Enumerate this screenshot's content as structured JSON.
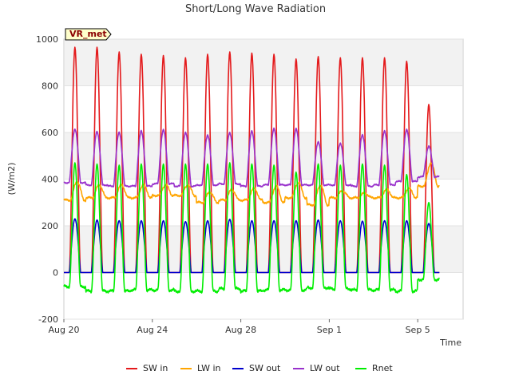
{
  "chart_data": {
    "type": "line",
    "title": "Short/Long Wave Radiation",
    "xlabel": "Time",
    "ylabel": "(W/m2)",
    "badge": "VR_met",
    "ylim": [
      -200,
      1000
    ],
    "yticks": [
      -200,
      0,
      200,
      400,
      600,
      800,
      1000
    ],
    "xlim_days": [
      0,
      18
    ],
    "xticks": [
      {
        "day": 0,
        "label": "Aug 20"
      },
      {
        "day": 4,
        "label": "Aug 24"
      },
      {
        "day": 8,
        "label": "Aug 28"
      },
      {
        "day": 12,
        "label": "Sep 1"
      },
      {
        "day": 16,
        "label": "Sep 5"
      }
    ],
    "days": [
      "Aug 20",
      "Aug 21",
      "Aug 22",
      "Aug 23",
      "Aug 24",
      "Aug 25",
      "Aug 26",
      "Aug 27",
      "Aug 28",
      "Aug 29",
      "Aug 30",
      "Aug 31",
      "Sep 1",
      "Sep 2",
      "Sep 3",
      "Sep 4",
      "Sep 5",
      "Sep 6"
    ],
    "daily_peaks": {
      "sw_in": [
        965,
        965,
        945,
        935,
        930,
        920,
        935,
        945,
        940,
        935,
        915,
        925,
        920,
        920,
        920,
        905,
        720
      ],
      "lw_in_min": [
        310,
        320,
        320,
        320,
        330,
        330,
        300,
        310,
        310,
        300,
        320,
        290,
        320,
        320,
        320,
        320,
        370
      ],
      "lw_in_max": [
        390,
        375,
        375,
        375,
        375,
        375,
        345,
        355,
        360,
        370,
        385,
        375,
        350,
        340,
        355,
        360,
        470
      ],
      "sw_out": [
        230,
        225,
        222,
        222,
        222,
        218,
        222,
        228,
        222,
        222,
        222,
        225,
        222,
        220,
        222,
        222,
        210
      ],
      "lw_out_min": [
        385,
        375,
        370,
        370,
        380,
        370,
        375,
        380,
        370,
        375,
        375,
        375,
        375,
        370,
        375,
        390,
        410
      ],
      "lw_out_max": [
        615,
        605,
        600,
        605,
        610,
        600,
        590,
        600,
        605,
        615,
        615,
        560,
        555,
        590,
        605,
        610,
        540
      ],
      "rnet_max": [
        470,
        465,
        460,
        465,
        465,
        465,
        465,
        470,
        465,
        460,
        430,
        465,
        460,
        465,
        460,
        420,
        300
      ],
      "rnet_min": [
        -60,
        -80,
        -80,
        -75,
        -75,
        -80,
        -80,
        -70,
        -80,
        -75,
        -75,
        -65,
        -70,
        -75,
        -75,
        -80,
        -30
      ]
    },
    "series": [
      {
        "key": "sw_in",
        "name": "SW in",
        "color": "#e41a1c"
      },
      {
        "key": "lw_in",
        "name": "LW in",
        "color": "#ffa500"
      },
      {
        "key": "sw_out",
        "name": "SW out",
        "color": "#0000cd"
      },
      {
        "key": "lw_out",
        "name": "LW out",
        "color": "#9932cc"
      },
      {
        "key": "rnet",
        "name": "Rnet",
        "color": "#00ee00"
      }
    ]
  }
}
